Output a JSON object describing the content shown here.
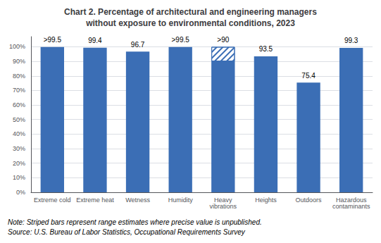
{
  "chart_data": {
    "type": "bar",
    "title": "Chart 2. Percentage of architectural and engineering managers\nwithout exposure to environmental conditions, 2023",
    "categories": [
      "Extreme cold",
      "Extreme heat",
      "Wetness",
      "Humidity",
      "Heavy\nvibrations",
      "Heights",
      "Outdoors",
      "Hazardous\ncontaminants"
    ],
    "stacked": true,
    "series": [
      {
        "type": "bar",
        "color": "#3B6EB5",
        "line_style": "solid",
        "values": [
          99.9,
          99.4,
          96.7,
          99.9,
          90.0,
          93.5,
          75.4,
          99.3
        ]
      },
      {
        "type": "bar",
        "color": "#3B6EB5",
        "line_style": "striped",
        "values": [
          null,
          null,
          null,
          null,
          10.0,
          null,
          null,
          null
        ]
      }
    ],
    "data_labels": true,
    "value_labels": [
      ">99.5",
      "99.4",
      "96.7",
      ">99.5",
      ">90",
      "93.5",
      "75.4",
      "99.3"
    ],
    "ylim": [
      0,
      107
    ],
    "yticks": [
      {
        "value": 0,
        "label": "0%"
      },
      {
        "value": 10,
        "label": "10%"
      },
      {
        "value": 20,
        "label": "20%"
      },
      {
        "value": 30,
        "label": "30%"
      },
      {
        "value": 40,
        "label": "40%"
      },
      {
        "value": 50,
        "label": "50%"
      },
      {
        "value": 60,
        "label": "60%"
      },
      {
        "value": 70,
        "label": "70%"
      },
      {
        "value": 80,
        "label": "80%"
      },
      {
        "value": 90,
        "label": "90%"
      },
      {
        "value": 100,
        "label": "100%"
      }
    ],
    "grid": true,
    "notes": [
      "Note: Striped bars represent range estimates where precise value is unpublished.",
      "Source: U.S. Bureau of Labor Statistics, Occupational Requirements Survey"
    ]
  }
}
